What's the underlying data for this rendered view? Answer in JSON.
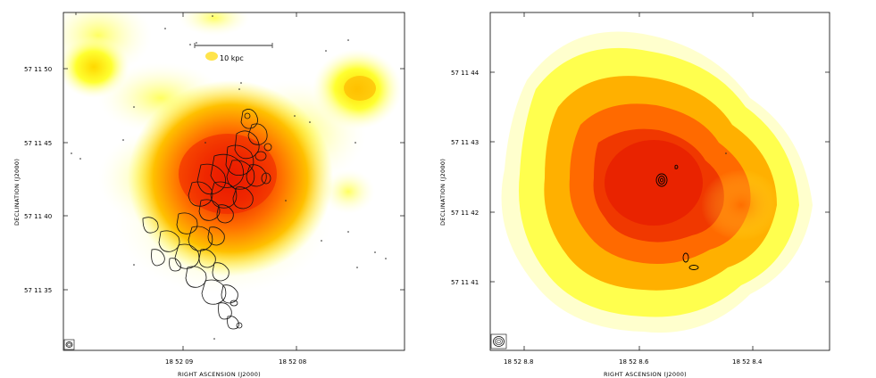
{
  "figure": {
    "left_panel": {
      "ylabel": "DECLINATION  (J2000)",
      "xlabel": "RIGHT ASCENSION  (J2000)",
      "y_ticks": [
        "57 11 50",
        "57 11 45",
        "57 11 40",
        "57 11 35"
      ],
      "x_ticks": [
        "18 52 09",
        "18 52 08"
      ],
      "scale_bar_label": "10 kpc"
    },
    "right_panel": {
      "ylabel": "DECLINATION  (J2000)",
      "xlabel": "RIGHT ASCENSION  (J2000)",
      "y_ticks": [
        "57 11 44",
        "57 11 43",
        "57 11 42",
        "57 11 41"
      ],
      "x_ticks": [
        "18 52 8.8",
        "18 52 8.6",
        "18 52 8.4"
      ]
    }
  },
  "colors": {
    "map_core": "#e31a0c",
    "map_mid": "#ff8c00",
    "map_outer": "#ffff30",
    "map_edge": "#ffffc0",
    "contour": "#000000",
    "contour_light": "#555555"
  }
}
